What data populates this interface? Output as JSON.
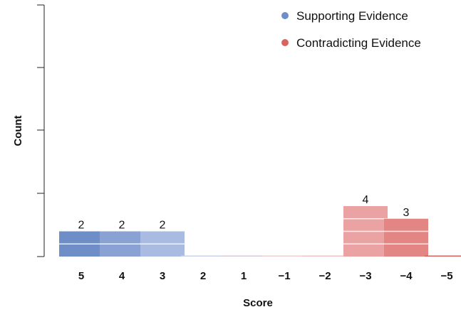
{
  "chart_data": {
    "type": "bar",
    "categories": [
      "5",
      "4",
      "3",
      "2",
      "1",
      "−1",
      "−2",
      "−3",
      "−4",
      "−5"
    ],
    "values": [
      2,
      2,
      2,
      0,
      0,
      0,
      0,
      4,
      3,
      0
    ],
    "data_labels": [
      "2",
      "2",
      "2",
      "",
      "",
      "",
      "",
      "4",
      "3",
      ""
    ],
    "bar_colors": [
      "#6f8ec7",
      "#8aa2d3",
      "#a9bbe0",
      "#c7d2ec",
      "#d9c9d6",
      "#f0d0d0",
      "#f2c2c2",
      "#eaa2a2",
      "#e28583",
      "#d9625f"
    ],
    "xlabel": "Score",
    "ylabel": "Count",
    "ylim": [
      0,
      8
    ],
    "legend": {
      "position": "top-right",
      "entries": [
        {
          "label": "Supporting Evidence",
          "color": "#6f8ec7"
        },
        {
          "label": "Contradicting Evidence",
          "color": "#d9625f"
        }
      ]
    }
  }
}
